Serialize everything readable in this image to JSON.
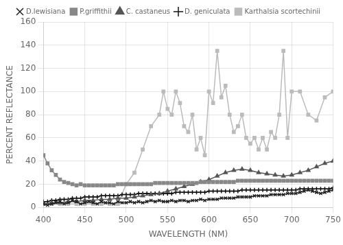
{
  "chart_data": {
    "type": "line",
    "xlabel": "WAVELENGTH (NM)",
    "ylabel": "PERCENT REFLECTANCE",
    "xlim": [
      400,
      750
    ],
    "ylim": [
      0,
      160
    ],
    "xticks": [
      400,
      450,
      500,
      550,
      600,
      650,
      700,
      750
    ],
    "yticks": [
      0,
      20,
      40,
      60,
      80,
      100,
      120,
      140,
      160
    ],
    "grid": true,
    "legend": "top",
    "series": [
      {
        "name": "D.lewisiana",
        "color": "#222222",
        "marker": "x",
        "x": [
          400,
          405,
          410,
          415,
          420,
          425,
          430,
          435,
          440,
          445,
          450,
          455,
          460,
          465,
          470,
          475,
          480,
          485,
          490,
          495,
          500,
          505,
          510,
          515,
          520,
          525,
          530,
          535,
          540,
          545,
          550,
          555,
          560,
          565,
          570,
          575,
          580,
          585,
          590,
          595,
          600,
          605,
          610,
          615,
          620,
          625,
          630,
          635,
          640,
          645,
          650,
          655,
          660,
          665,
          670,
          675,
          680,
          685,
          690,
          695,
          700,
          705,
          710,
          715,
          720,
          725,
          730,
          735,
          740,
          745,
          750
        ],
        "values": [
          3,
          2,
          3,
          4,
          5,
          3,
          4,
          6,
          5,
          3,
          4,
          5,
          4,
          3,
          5,
          4,
          4,
          3,
          5,
          4,
          4,
          5,
          4,
          5,
          4,
          5,
          6,
          5,
          6,
          5,
          5,
          6,
          5,
          6,
          6,
          5,
          6,
          6,
          7,
          6,
          7,
          7,
          7,
          8,
          8,
          8,
          8,
          9,
          9,
          9,
          9,
          10,
          10,
          10,
          10,
          11,
          11,
          11,
          11,
          12,
          12,
          12,
          13,
          14,
          15,
          14,
          13,
          12,
          13,
          14,
          15
        ]
      },
      {
        "name": "P.griffithii",
        "color": "#888888",
        "marker": "square",
        "x": [
          400,
          405,
          410,
          415,
          420,
          425,
          430,
          435,
          440,
          445,
          450,
          455,
          460,
          465,
          470,
          475,
          480,
          485,
          490,
          495,
          500,
          505,
          510,
          515,
          520,
          525,
          530,
          535,
          540,
          545,
          550,
          555,
          560,
          565,
          570,
          575,
          580,
          585,
          590,
          595,
          600,
          605,
          610,
          615,
          620,
          625,
          630,
          635,
          640,
          645,
          650,
          655,
          660,
          665,
          670,
          675,
          680,
          685,
          690,
          695,
          700,
          705,
          710,
          715,
          720,
          725,
          730,
          735,
          740,
          745,
          750
        ],
        "values": [
          45,
          38,
          32,
          28,
          24,
          22,
          21,
          20,
          19,
          20,
          19,
          19,
          19,
          19,
          19,
          19,
          19,
          19,
          20,
          20,
          20,
          20,
          20,
          20,
          20,
          20,
          20,
          21,
          21,
          21,
          21,
          21,
          21,
          21,
          21,
          21,
          21,
          21,
          22,
          22,
          22,
          22,
          22,
          22,
          22,
          22,
          22,
          23,
          23,
          23,
          23,
          23,
          23,
          23,
          23,
          23,
          23,
          23,
          23,
          23,
          23,
          23,
          23,
          23,
          23,
          23,
          23,
          23,
          23,
          23,
          23
        ]
      },
      {
        "name": "C. castaneus",
        "color": "#555555",
        "marker": "triangle",
        "x": [
          400,
          410,
          420,
          430,
          440,
          450,
          460,
          470,
          480,
          490,
          500,
          510,
          520,
          530,
          540,
          550,
          560,
          570,
          580,
          590,
          600,
          610,
          620,
          630,
          640,
          650,
          660,
          670,
          680,
          690,
          700,
          710,
          720,
          730,
          740,
          750
        ],
        "values": [
          3,
          4,
          4,
          5,
          5,
          6,
          6,
          7,
          7,
          8,
          8,
          9,
          10,
          11,
          12,
          14,
          16,
          18,
          20,
          22,
          24,
          27,
          30,
          32,
          33,
          32,
          30,
          29,
          28,
          27,
          28,
          30,
          32,
          35,
          38,
          40
        ]
      },
      {
        "name": "D. geniculata",
        "color": "#111111",
        "marker": "plus",
        "x": [
          400,
          405,
          410,
          415,
          420,
          425,
          430,
          435,
          440,
          445,
          450,
          455,
          460,
          465,
          470,
          475,
          480,
          485,
          490,
          495,
          500,
          505,
          510,
          515,
          520,
          525,
          530,
          535,
          540,
          545,
          550,
          555,
          560,
          565,
          570,
          575,
          580,
          585,
          590,
          595,
          600,
          605,
          610,
          615,
          620,
          625,
          630,
          635,
          640,
          645,
          650,
          655,
          660,
          665,
          670,
          675,
          680,
          685,
          690,
          695,
          700,
          705,
          710,
          715,
          720,
          725,
          730,
          735,
          740,
          745,
          750
        ],
        "values": [
          5,
          5,
          6,
          6,
          7,
          7,
          7,
          8,
          8,
          8,
          9,
          9,
          9,
          9,
          10,
          10,
          10,
          10,
          10,
          11,
          11,
          11,
          11,
          12,
          12,
          12,
          12,
          12,
          12,
          12,
          12,
          12,
          13,
          13,
          13,
          13,
          13,
          13,
          13,
          13,
          14,
          14,
          14,
          14,
          14,
          14,
          14,
          14,
          15,
          15,
          15,
          15,
          15,
          15,
          15,
          15,
          15,
          15,
          15,
          15,
          15,
          15,
          16,
          16,
          16,
          16,
          16,
          16,
          16,
          16,
          17
        ]
      },
      {
        "name": "Karthalsia scortechinii",
        "color": "#bbbbbb",
        "marker": "square",
        "x": [
          400,
          410,
          420,
          430,
          440,
          450,
          460,
          470,
          480,
          490,
          500,
          510,
          520,
          530,
          540,
          545,
          550,
          555,
          560,
          565,
          570,
          575,
          580,
          585,
          590,
          595,
          600,
          605,
          610,
          615,
          620,
          625,
          630,
          635,
          640,
          645,
          650,
          655,
          660,
          665,
          670,
          675,
          680,
          685,
          690,
          695,
          700,
          710,
          720,
          730,
          740,
          750
        ],
        "values": [
          3,
          3,
          3,
          3,
          3,
          3,
          3,
          3,
          3,
          3,
          20,
          30,
          50,
          70,
          80,
          100,
          85,
          80,
          100,
          90,
          70,
          65,
          80,
          50,
          60,
          45,
          100,
          90,
          135,
          95,
          105,
          80,
          65,
          70,
          80,
          60,
          55,
          60,
          50,
          60,
          50,
          65,
          60,
          80,
          135,
          60,
          100,
          100,
          80,
          75,
          95,
          100
        ]
      }
    ]
  }
}
